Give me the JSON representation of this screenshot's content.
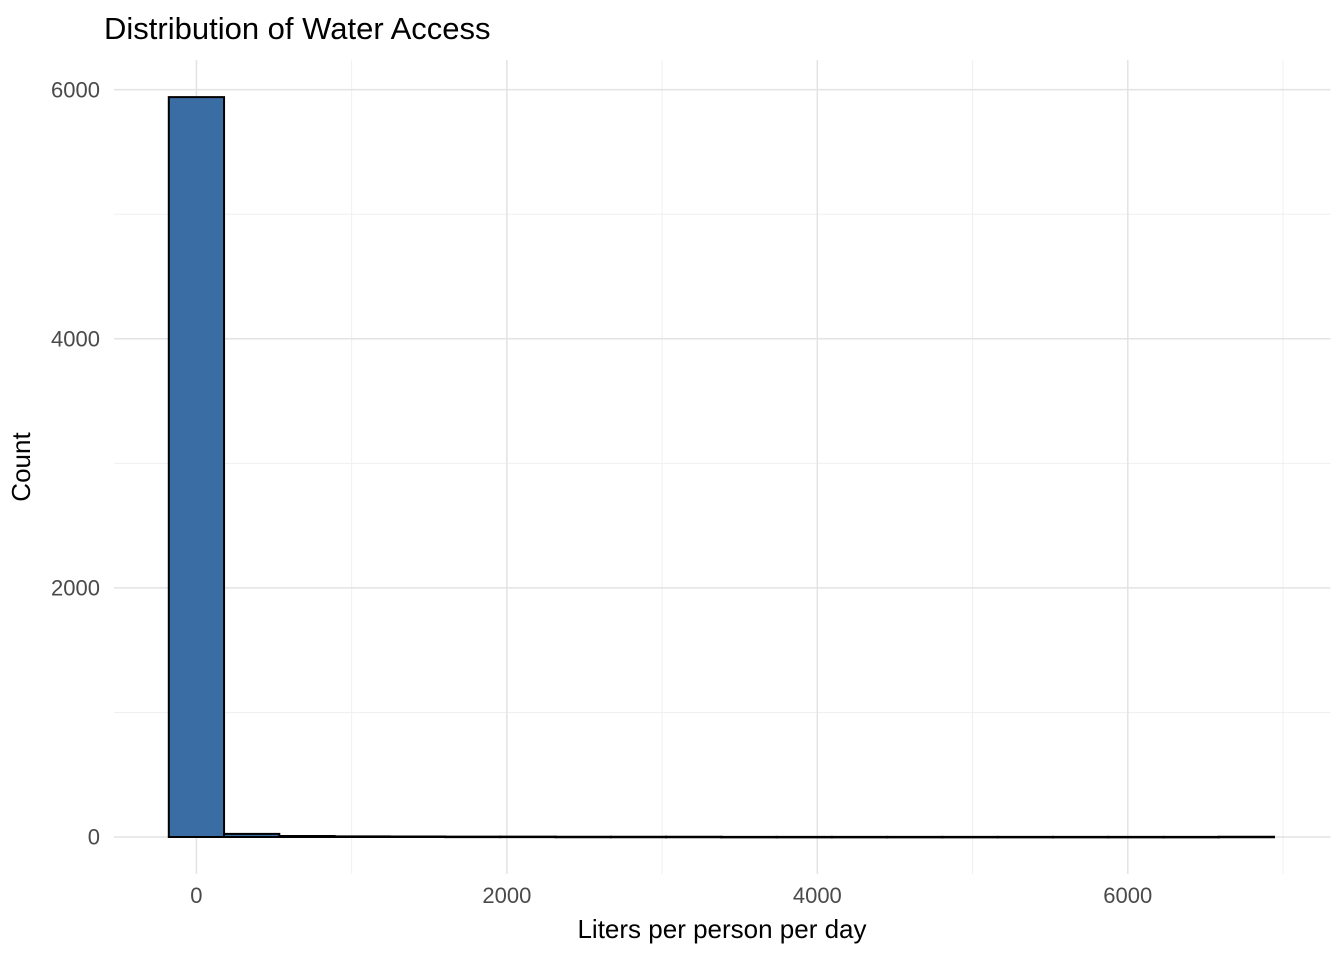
{
  "chart_data": {
    "type": "bar",
    "subtype": "histogram",
    "title": "Distribution of Water Access",
    "xlabel": "Liters per person per day",
    "ylabel": "Count",
    "bin_width": 356,
    "bin_centers": [
      0,
      356,
      712,
      1068,
      1424,
      1780,
      2136,
      2492,
      2848,
      3204,
      3560,
      3916,
      4272,
      4628,
      4984,
      5340,
      5696,
      6052,
      6408,
      6764
    ],
    "counts": [
      5940,
      25,
      8,
      5,
      4,
      3,
      3,
      2,
      2,
      2,
      1,
      1,
      1,
      1,
      1,
      1,
      1,
      1,
      1,
      2
    ],
    "x_major_ticks": [
      0,
      2000,
      4000,
      6000
    ],
    "x_minor_ticks": [
      1000,
      3000,
      5000,
      7000
    ],
    "y_major_ticks": [
      0,
      2000,
      4000,
      6000
    ],
    "y_minor_ticks": [
      1000,
      3000,
      5000
    ],
    "x_tick_labels": [
      "0",
      "2000",
      "4000",
      "6000"
    ],
    "y_tick_labels": [
      "0",
      "2000",
      "4000",
      "6000"
    ],
    "xlim": [
      -531,
      7306
    ],
    "ylim": [
      -297,
      6238
    ],
    "grid": "on",
    "legend": "none",
    "colors": {
      "bar_fill": "#3A6DA4",
      "bar_stroke": "#000000",
      "grid_major": "#E3E3E3",
      "grid_minor": "#F0F0F0",
      "tick_label": "#4A4A4A",
      "background": "#FFFFFF"
    }
  }
}
